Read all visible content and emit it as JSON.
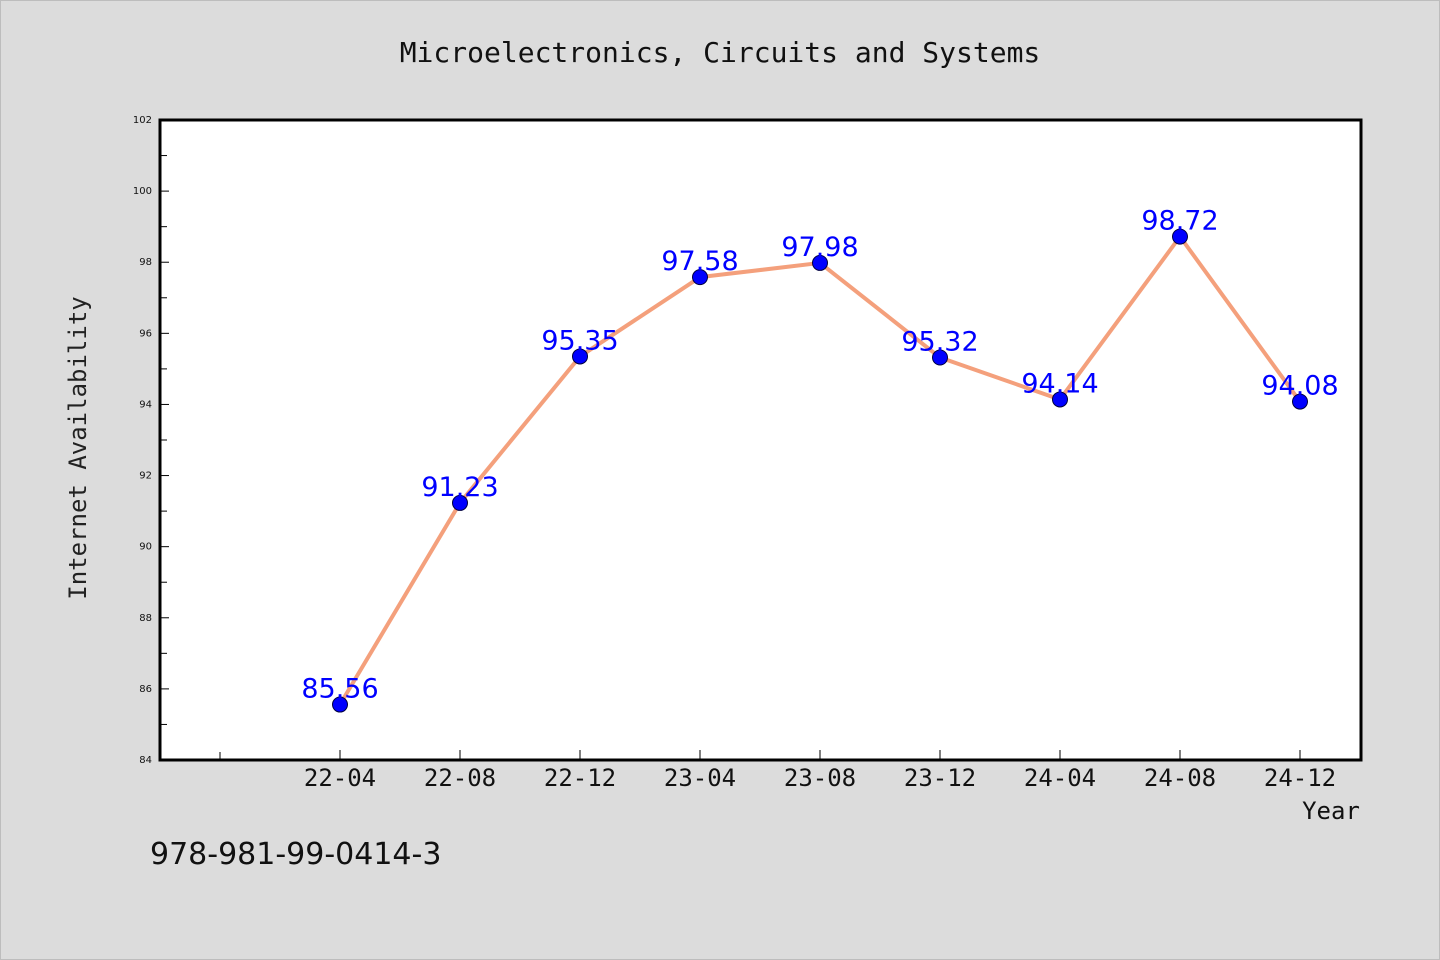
{
  "chart_data": {
    "type": "line",
    "title": "Microelectronics, Circuits and Systems",
    "xlabel": "Year",
    "ylabel": "Internet Availability",
    "categories": [
      "22-04",
      "22-08",
      "22-12",
      "23-04",
      "23-08",
      "23-12",
      "24-04",
      "24-08",
      "24-12"
    ],
    "series": [
      {
        "values": [
          85.56,
          91.23,
          95.35,
          97.58,
          97.98,
          95.32,
          94.14,
          98.72,
          94.08
        ],
        "data_labels": [
          "85.56",
          "91.23",
          "95.35",
          "97.58",
          "97.98",
          "95.32",
          "94.14",
          "98.72",
          "94.08"
        ],
        "line_color": "#f4a07c",
        "marker_color": "#0000ff"
      }
    ],
    "ylim": [
      84,
      102
    ],
    "yticks": [
      "84",
      "86",
      "88",
      "90",
      "92",
      "94",
      "96",
      "98",
      "100",
      "102"
    ],
    "grid": false,
    "legend": false
  },
  "annotation": "978-981-99-0414-3",
  "colors": {
    "background": "#dcdcdc",
    "plot_background": "#ffffff",
    "axis": "#000000",
    "data_label": "#0000ff"
  }
}
